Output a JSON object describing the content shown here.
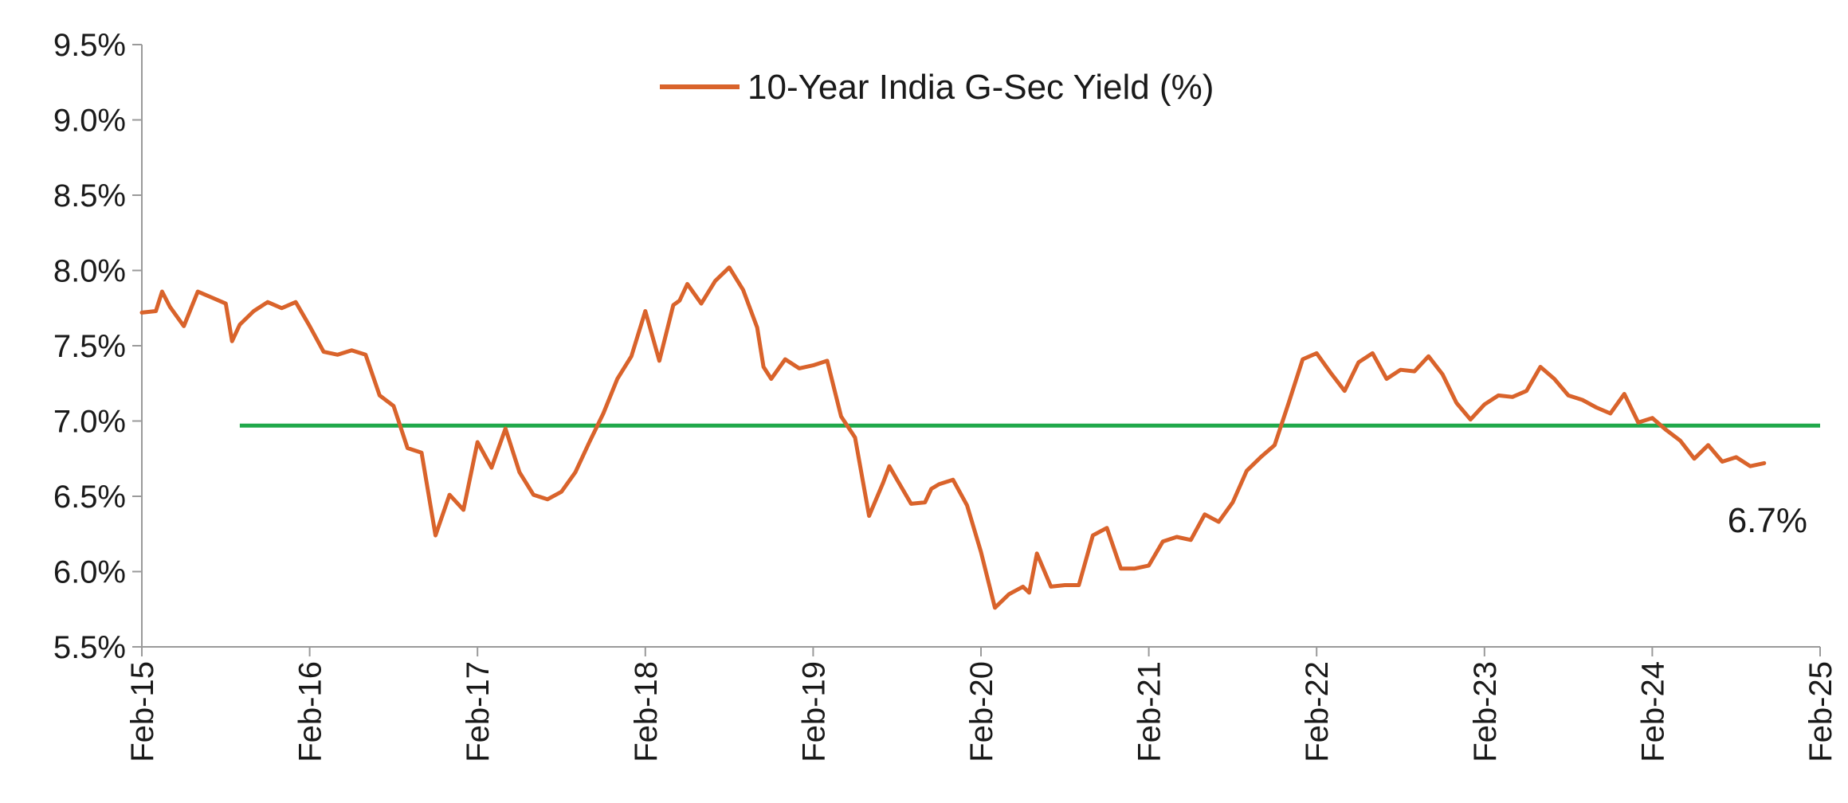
{
  "chart_data": {
    "type": "line",
    "legend": {
      "label": "10-Year India G-Sec Yield (%)",
      "position": "top-center"
    },
    "ylim": [
      5.5,
      9.5
    ],
    "y_ticks": [
      "5.5%",
      "6.0%",
      "6.5%",
      "7.0%",
      "7.5%",
      "8.0%",
      "8.5%",
      "9.0%",
      "9.5%"
    ],
    "x_ticks": [
      "Feb-15",
      "Feb-16",
      "Feb-17",
      "Feb-18",
      "Feb-19",
      "Feb-20",
      "Feb-21",
      "Feb-22",
      "Feb-23",
      "Feb-24",
      "Feb-25"
    ],
    "grid": false,
    "colors": {
      "yield": "#d9632b",
      "average": "#1fa84a",
      "axis": "#9a9a9a"
    },
    "series": [
      {
        "name": "10-Year India G-Sec Yield (%)",
        "points": [
          [
            "2015-02",
            7.72
          ],
          [
            "2015-03",
            7.73
          ],
          [
            "2015-03",
            7.86
          ],
          [
            "2015-04",
            7.76
          ],
          [
            "2015-05",
            7.63
          ],
          [
            "2015-06",
            7.86
          ],
          [
            "2015-07",
            7.82
          ],
          [
            "2015-08",
            7.78
          ],
          [
            "2015-08",
            7.53
          ],
          [
            "2015-09",
            7.64
          ],
          [
            "2015-10",
            7.73
          ],
          [
            "2015-11",
            7.79
          ],
          [
            "2015-12",
            7.75
          ],
          [
            "2016-01",
            7.79
          ],
          [
            "2016-02",
            7.63
          ],
          [
            "2016-03",
            7.46
          ],
          [
            "2016-04",
            7.44
          ],
          [
            "2016-05",
            7.47
          ],
          [
            "2016-06",
            7.44
          ],
          [
            "2016-07",
            7.17
          ],
          [
            "2016-08",
            7.1
          ],
          [
            "2016-09",
            6.82
          ],
          [
            "2016-10",
            6.79
          ],
          [
            "2016-11",
            6.24
          ],
          [
            "2016-12",
            6.51
          ],
          [
            "2017-01",
            6.41
          ],
          [
            "2017-02",
            6.86
          ],
          [
            "2017-03",
            6.69
          ],
          [
            "2017-04",
            6.95
          ],
          [
            "2017-05",
            6.66
          ],
          [
            "2017-06",
            6.51
          ],
          [
            "2017-07",
            6.48
          ],
          [
            "2017-08",
            6.53
          ],
          [
            "2017-09",
            6.66
          ],
          [
            "2017-10",
            6.86
          ],
          [
            "2017-11",
            7.05
          ],
          [
            "2017-12",
            7.28
          ],
          [
            "2018-01",
            7.43
          ],
          [
            "2018-02",
            7.73
          ],
          [
            "2018-03",
            7.4
          ],
          [
            "2018-04",
            7.77
          ],
          [
            "2018-04",
            7.8
          ],
          [
            "2018-05",
            7.91
          ],
          [
            "2018-06",
            7.78
          ],
          [
            "2018-07",
            7.93
          ],
          [
            "2018-08",
            8.02
          ],
          [
            "2018-09",
            7.87
          ],
          [
            "2018-10",
            7.62
          ],
          [
            "2018-10",
            7.36
          ],
          [
            "2018-11",
            7.28
          ],
          [
            "2018-12",
            7.41
          ],
          [
            "2019-01",
            7.35
          ],
          [
            "2019-02",
            7.37
          ],
          [
            "2019-03",
            7.4
          ],
          [
            "2019-04",
            7.03
          ],
          [
            "2019-05",
            6.89
          ],
          [
            "2019-06",
            6.37
          ],
          [
            "2019-07",
            6.59
          ],
          [
            "2019-07",
            6.7
          ],
          [
            "2019-08",
            6.61
          ],
          [
            "2019-09",
            6.45
          ],
          [
            "2019-10",
            6.46
          ],
          [
            "2019-10",
            6.55
          ],
          [
            "2019-11",
            6.58
          ],
          [
            "2019-12",
            6.61
          ],
          [
            "2020-01",
            6.44
          ],
          [
            "2020-02",
            6.13
          ],
          [
            "2020-03",
            5.76
          ],
          [
            "2020-04",
            5.85
          ],
          [
            "2020-05",
            5.9
          ],
          [
            "2020-05",
            5.86
          ],
          [
            "2020-06",
            6.12
          ],
          [
            "2020-07",
            5.9
          ],
          [
            "2020-08",
            5.91
          ],
          [
            "2020-09",
            5.91
          ],
          [
            "2020-10",
            6.24
          ],
          [
            "2020-11",
            6.29
          ],
          [
            "2020-12",
            6.02
          ],
          [
            "2021-01",
            6.02
          ],
          [
            "2021-02",
            6.04
          ],
          [
            "2021-03",
            6.2
          ],
          [
            "2021-04",
            6.23
          ],
          [
            "2021-05",
            6.21
          ],
          [
            "2021-06",
            6.38
          ],
          [
            "2021-07",
            6.33
          ],
          [
            "2021-08",
            6.46
          ],
          [
            "2021-09",
            6.67
          ],
          [
            "2021-10",
            6.76
          ],
          [
            "2021-11",
            6.84
          ],
          [
            "2021-12",
            7.12
          ],
          [
            "2022-01",
            7.41
          ],
          [
            "2022-02",
            7.45
          ],
          [
            "2022-03",
            7.32
          ],
          [
            "2022-04",
            7.2
          ],
          [
            "2022-05",
            7.39
          ],
          [
            "2022-06",
            7.45
          ],
          [
            "2022-07",
            7.28
          ],
          [
            "2022-08",
            7.34
          ],
          [
            "2022-09",
            7.33
          ],
          [
            "2022-10",
            7.43
          ],
          [
            "2022-11",
            7.31
          ],
          [
            "2022-12",
            7.12
          ],
          [
            "2023-01",
            7.01
          ],
          [
            "2023-02",
            7.11
          ],
          [
            "2023-03",
            7.17
          ],
          [
            "2023-04",
            7.16
          ],
          [
            "2023-05",
            7.2
          ],
          [
            "2023-06",
            7.36
          ],
          [
            "2023-07",
            7.28
          ],
          [
            "2023-08",
            7.17
          ],
          [
            "2023-09",
            7.14
          ],
          [
            "2023-10",
            7.09
          ],
          [
            "2023-11",
            7.05
          ],
          [
            "2023-12",
            7.18
          ],
          [
            "2024-01",
            6.99
          ],
          [
            "2024-02",
            7.02
          ],
          [
            "2024-03",
            6.94
          ],
          [
            "2024-04",
            6.87
          ],
          [
            "2024-05",
            6.75
          ],
          [
            "2024-06",
            6.84
          ],
          [
            "2024-07",
            6.73
          ],
          [
            "2024-08",
            6.76
          ],
          [
            "2024-09",
            6.7
          ],
          [
            "2024-10",
            6.72
          ]
        ]
      },
      {
        "points": [
          [
            "2015-09",
            6.97
          ],
          [
            "2025-02",
            6.97
          ]
        ]
      }
    ],
    "annotations": [
      {
        "text": "6.7%",
        "x": "2024-10",
        "y": 6.72
      }
    ]
  }
}
